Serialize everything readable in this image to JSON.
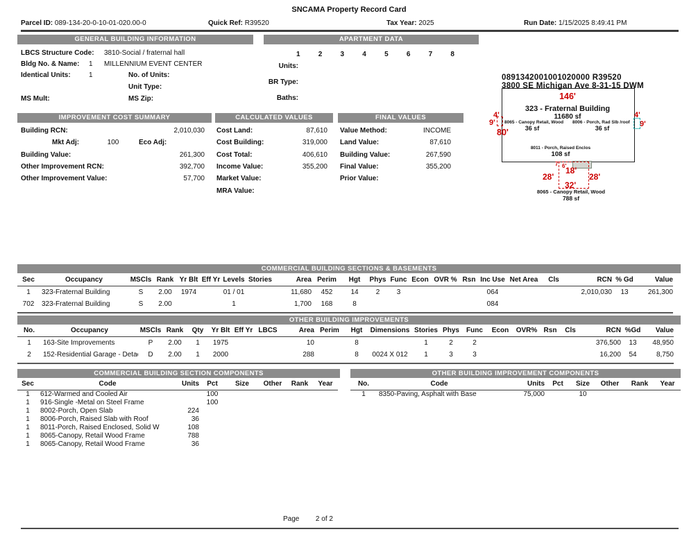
{
  "colors": {
    "bar": "#8c8c8c",
    "red": "#cc0000",
    "teal": "#33b3b3",
    "grayfill": "#d4d4cf"
  },
  "title": "SNCAMA Property Record Card",
  "header": {
    "parcel_label": "Parcel ID:",
    "parcel": "089-134-20-0-10-01-020.00-0",
    "quickref_label": "Quick Ref:",
    "quickref": "R39520",
    "taxyear_label": "Tax Year:",
    "taxyear": "2025",
    "rundate_label": "Run Date:",
    "rundate": "1/15/2025 8:49:41 PM"
  },
  "general": {
    "title": "GENERAL BUILDING INFORMATION",
    "lbcs_label": "LBCS Structure Code:",
    "lbcs": "3810-Social / fraternal hall",
    "bldg_label": "Bldg No. & Name:",
    "bldg_no": "1",
    "bldg_name": "MILLENNIUM EVENT CENTER",
    "identical_label": "Identical Units:",
    "identical": "1",
    "no_units_label": "No. of Units:",
    "no_units": "",
    "unit_type_label": "Unit Type:",
    "unit_type": "",
    "ms_mult_label": "MS Mult:",
    "ms_mult": "",
    "ms_zip_label": "MS Zip:",
    "ms_zip": ""
  },
  "apartment": {
    "title": "APARTMENT DATA",
    "columns": [
      "1",
      "2",
      "3",
      "4",
      "5",
      "6",
      "7",
      "8"
    ],
    "units_label": "Units:",
    "br_label": "BR Type:",
    "baths_label": "Baths:"
  },
  "cost_summary": {
    "title": "IMPROVEMENT COST SUMMARY",
    "rcn_label": "Building RCN:",
    "rcn": "2,010,030",
    "mkt_label": "Mkt Adj:",
    "mkt": "100",
    "eco_label": "Eco Adj:",
    "eco": "",
    "bval_label": "Building Value:",
    "bval": "261,300",
    "oircn_label": "Other Improvement RCN:",
    "oircn": "392,700",
    "oival_label": "Other Improvement Value:",
    "oival": "57,700"
  },
  "calculated": {
    "title": "CALCULATED VALUES",
    "items": [
      {
        "label": "Cost Land:",
        "value": "87,610"
      },
      {
        "label": "Cost Building:",
        "value": "319,000"
      },
      {
        "label": "Cost Total:",
        "value": "406,610"
      },
      {
        "label": "Income Value:",
        "value": "355,200"
      },
      {
        "label": "Market Value:",
        "value": ""
      },
      {
        "label": "MRA Value:",
        "value": ""
      }
    ]
  },
  "final": {
    "title": "FINAL VALUES",
    "items": [
      {
        "label": "Value Method:",
        "value": "INCOME"
      },
      {
        "label": "Land Value:",
        "value": "87,610"
      },
      {
        "label": "Building Value:",
        "value": "267,590"
      },
      {
        "label": "Final Value:",
        "value": "355,200"
      },
      {
        "label": "Prior Value:",
        "value": ""
      }
    ]
  },
  "sketch": {
    "line1": "0891342001001020000  R39520",
    "line2": "3800 SE Michigan Ave 8-31-15 DWM",
    "top_dim": "146'",
    "main_label": "323 - Fraternal Building",
    "main_area": "11680 sf",
    "left_dim_a": "4'",
    "left_dim_b": "9'",
    "left_dim_c": "80'",
    "right_dim_a": "4'",
    "right_dim_b": "9'",
    "left_feature": "8065 - Canopy Retail, Wood",
    "left_feature_area": "36 sf",
    "right_feature": "8006 - Porch, Rad Slb /roof",
    "right_feature_area": "36 sf",
    "bottom_feature": "8011 - Porch, Raised Enclos",
    "bottom_feature_area": "108 sf",
    "lower": {
      "dim_a": "7'",
      "dim_b": "6'",
      "dim_c": "18'",
      "dim_left": "28'",
      "dim_right": "28'",
      "dim_bottom": "32'",
      "label": "8065 - Canopy Retail, Wood",
      "area": "788 sf"
    }
  },
  "tables": {
    "sections": {
      "title": "COMMERCIAL BUILDING SECTIONS & BASEMENTS",
      "headers": [
        "Sec",
        "Occupancy",
        "MSCls",
        "Rank",
        "Yr Blt",
        "Eff Yr",
        "Levels",
        "Stories",
        "Area",
        "Perim",
        "Hgt",
        "Phys",
        "Func",
        "Econ",
        "OVR %",
        "Rsn",
        "Inc Use",
        "Net Area",
        "Cls",
        "RCN",
        "% Gd",
        "Value"
      ],
      "rows": [
        [
          "1",
          "323-Fraternal Building",
          "S",
          "2.00",
          "1974",
          "",
          "01 / 01",
          "",
          "11,680",
          "452",
          "14",
          "2",
          "3",
          "",
          "",
          "",
          "064",
          "",
          "",
          "2,010,030",
          "13",
          "261,300"
        ],
        [
          "702",
          "323-Fraternal Building",
          "S",
          "2.00",
          "",
          "",
          "1",
          "",
          "1,700",
          "168",
          "8",
          "",
          "",
          "",
          "",
          "",
          "084",
          "",
          "",
          "",
          "",
          ""
        ]
      ]
    },
    "improvements": {
      "title": "OTHER BUILDING IMPROVEMENTS",
      "headers": [
        "No.",
        "Occupancy",
        "MSCls",
        "Rank",
        "Qty",
        "Yr Blt",
        "Eff Yr",
        "LBCS",
        "Area",
        "Perim",
        "Hgt",
        "Dimensions",
        "Stories",
        "Phys",
        "Func",
        "Econ",
        "OVR%",
        "Rsn",
        "Cls",
        "RCN",
        "%Gd",
        "Value"
      ],
      "rows": [
        [
          "1",
          "163-Site Improvements",
          "P",
          "2.00",
          "1",
          "1975",
          "",
          "",
          "10",
          "",
          "8",
          "",
          "1",
          "2",
          "2",
          "",
          "",
          "",
          "",
          "376,500",
          "13",
          "48,950"
        ],
        [
          "2",
          "152-Residential Garage - Detached",
          "D",
          "2.00",
          "1",
          "2000",
          "",
          "",
          "288",
          "",
          "8",
          "0024 X 012",
          "1",
          "3",
          "3",
          "",
          "",
          "",
          "",
          "16,200",
          "54",
          "8,750"
        ]
      ]
    },
    "components_left": {
      "title": "COMMERCIAL BUILDING SECTION COMPONENTS",
      "headers": [
        "Sec",
        "Code",
        "Units",
        "Pct",
        "Size",
        "Other",
        "Rank",
        "Year"
      ],
      "rows": [
        [
          "1",
          "612-Warmed and Cooled Air",
          "",
          "100",
          "",
          "",
          "",
          ""
        ],
        [
          "1",
          "916-Single -Metal on Steel Frame",
          "",
          "100",
          "",
          "",
          "",
          ""
        ],
        [
          "1",
          "8002-Porch, Open Slab",
          "224",
          "",
          "",
          "",
          "",
          ""
        ],
        [
          "1",
          "8006-Porch, Raised Slab with Roof",
          "36",
          "",
          "",
          "",
          "",
          ""
        ],
        [
          "1",
          "8011-Porch, Raised Enclosed, Solid W",
          "108",
          "",
          "",
          "",
          "",
          ""
        ],
        [
          "1",
          "8065-Canopy, Retail Wood Frame",
          "788",
          "",
          "",
          "",
          "",
          ""
        ],
        [
          "1",
          "8065-Canopy, Retail Wood Frame",
          "36",
          "",
          "",
          "",
          "",
          ""
        ]
      ]
    },
    "components_right": {
      "title": "OTHER BUILDING IMPROVEMENT COMPONENTS",
      "headers": [
        "No.",
        "Code",
        "Units",
        "Pct",
        "Size",
        "Other",
        "Rank",
        "Year"
      ],
      "rows": [
        [
          "1",
          "8350-Paving, Asphalt with Base",
          "75,000",
          "",
          "10",
          "",
          "",
          ""
        ]
      ]
    }
  },
  "footer": {
    "page_label": "Page",
    "page_value": "2 of 2"
  }
}
